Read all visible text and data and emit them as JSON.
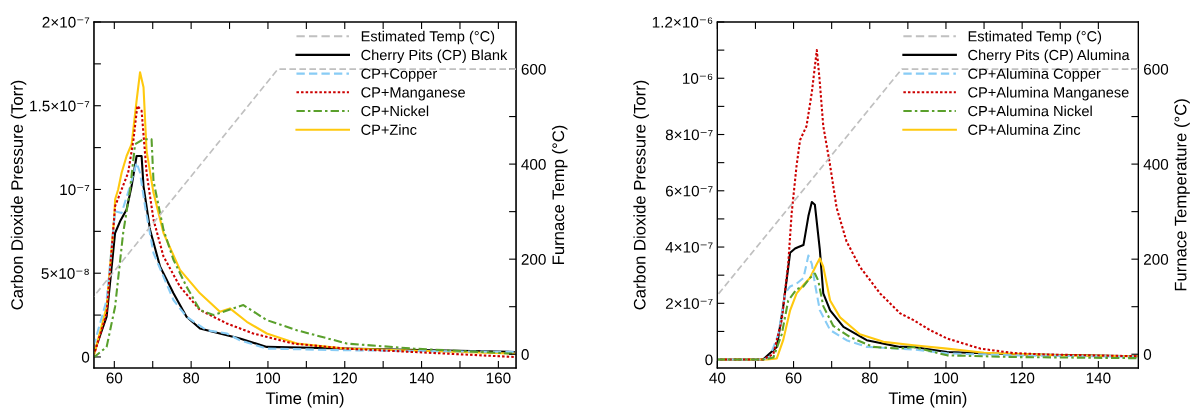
{
  "chart_data": [
    {
      "type": "line",
      "xlabel": "Time (min)",
      "ylabel": "Carbon Dioxide Pressure (Torr)",
      "y2label": "Furnace Temp (°C)",
      "legend": "top right",
      "grid": false,
      "xlim": [
        54.7,
        164.6
      ],
      "xticks": [
        60,
        {
          "value": 70,
          "label": null
        },
        80,
        {
          "value": 90,
          "label": null
        },
        100,
        {
          "value": 110,
          "label": null
        },
        120,
        {
          "value": 130,
          "label": null
        },
        140,
        {
          "value": 150,
          "label": null
        },
        160
      ],
      "ylim": [
        -6.6e-09,
        2e-07
      ],
      "yticks": [
        {
          "value": 0,
          "label": "0"
        },
        {
          "value": 2.5e-08,
          "label": null
        },
        {
          "value": 5e-08,
          "label": "5×10⁻⁸"
        },
        {
          "value": 7.5e-08,
          "label": null
        },
        {
          "value": 1e-07,
          "label": "10⁻⁷"
        },
        {
          "value": 1.25e-07,
          "label": null
        },
        {
          "value": 1.5e-07,
          "label": "1.5×10⁻⁷"
        },
        {
          "value": 1.75e-07,
          "label": null
        },
        {
          "value": 2e-07,
          "label": "2×10⁻⁷"
        }
      ],
      "y2lim": [
        -29,
        699
      ],
      "y2ticks": [
        0,
        {
          "value": 100,
          "label": null
        },
        200,
        {
          "value": 300,
          "label": null
        },
        400,
        {
          "value": 500,
          "label": null
        },
        600
      ],
      "series": [
        {
          "name": "Estimated Temp (°C)",
          "color": "#c0c0c0",
          "line_style": "dashed",
          "axis": "y2",
          "x": [
            54.7,
            102.6,
            164.6
          ],
          "values": [
            122,
            600,
            600
          ]
        },
        {
          "name": "Cherry Pits (CP) Blank",
          "color": "#000000",
          "line_style": "solid",
          "x": [
            54.8,
            58,
            60.2,
            61.5,
            63.2,
            64.5,
            65.8,
            67.1,
            67.6,
            69.3,
            71.9,
            75.4,
            78.8,
            82.3,
            89.3,
            92.7,
            99.7,
            120,
            164
          ],
          "values": [
            3e-09,
            2.4e-08,
            7.4e-08,
            8.1e-08,
            8.8e-08,
            1.02e-07,
            1.2e-07,
            1.2e-07,
            1.02e-07,
            7.6e-08,
            5.4e-08,
            3.8e-08,
            2.4e-08,
            1.7e-08,
            1.3e-08,
            1.1e-08,
            6e-09,
            5e-09,
            3e-09
          ]
        },
        {
          "name": "CP+Copper",
          "color": "#88ccf5",
          "line_style": "dashed",
          "x": [
            54.8,
            58,
            60.2,
            61.9,
            64.1,
            65.8,
            66.7,
            68,
            70.2,
            72.8,
            75.4,
            78.8,
            84,
            89.3,
            92.7,
            99.7,
            120,
            164
          ],
          "values": [
            8e-09,
            3.4e-08,
            8.7e-08,
            8.6e-08,
            1.02e-07,
            1.16e-07,
            1.1e-07,
            9e-08,
            6.2e-08,
            4.8e-08,
            3.4e-08,
            2.4e-08,
            1.6e-08,
            1.4e-08,
            1e-08,
            5e-09,
            4e-09,
            3e-09
          ]
        },
        {
          "name": "CP+Manganese",
          "color": "#cc0000",
          "line_style": "dotted",
          "x": [
            54.8,
            58,
            60.2,
            61.9,
            63.6,
            65,
            66,
            67.1,
            68.4,
            70.2,
            72.8,
            77.1,
            82.3,
            89.3,
            96.2,
            106.6,
            120,
            164
          ],
          "values": [
            2e-09,
            2.6e-08,
            9e-08,
            1e-07,
            1.1e-07,
            1.3e-07,
            1.5e-07,
            1.47e-07,
            1.1e-07,
            8.2e-08,
            6e-08,
            4.2e-08,
            2.8e-08,
            2e-08,
            1.4e-08,
            8e-09,
            5e-09,
            0
          ]
        },
        {
          "name": "CP+Nickel",
          "color": "#5aa02c",
          "line_style": "dashdot",
          "x": [
            54.8,
            58,
            60.2,
            62.3,
            64.1,
            65.4,
            67.6,
            69.7,
            70.2,
            72.8,
            75.4,
            78.8,
            82.3,
            85.8,
            91,
            93.6,
            99.7,
            107.5,
            120.5,
            137.9,
            163.6
          ],
          "values": [
            0,
            6e-09,
            3e-08,
            7.4e-08,
            1e-07,
            1.27e-07,
            1.3e-07,
            1.3e-07,
            1.05e-07,
            7.6e-08,
            5.8e-08,
            4.2e-08,
            2.8e-08,
            2.5e-08,
            2.9e-08,
            3.1e-08,
            2.2e-08,
            1.6e-08,
            8e-09,
            5e-09,
            2e-09
          ]
        },
        {
          "name": "CP+Zinc",
          "color": "#ffc90e",
          "line_style": "solid",
          "x": [
            54.8,
            58,
            60,
            60.2,
            61,
            61.9,
            63.2,
            64.5,
            65.8,
            66.7,
            67.6,
            68.4,
            70.2,
            72.8,
            77.1,
            82.3,
            87.5,
            90.1,
            94.5,
            99.7,
            107.5,
            120,
            164
          ],
          "values": [
            2e-09,
            3e-08,
            8.4e-08,
            9.4e-08,
            1e-07,
            1.1e-07,
            1.2e-07,
            1.27e-07,
            1.53e-07,
            1.7e-07,
            1.61e-07,
            1.23e-07,
            9.8e-08,
            7.4e-08,
            5.2e-08,
            3.8e-08,
            2.7e-08,
            2.9e-08,
            2.1e-08,
            1.4e-08,
            8e-09,
            5e-09,
            2e-09
          ]
        }
      ]
    },
    {
      "type": "line",
      "xlabel": "Time (min)",
      "ylabel": "Carbon Dioxide Pressure (Torr)",
      "y2label": "Furnace Temperature (°C)",
      "legend": "top right",
      "grid": false,
      "xlim": [
        40,
        150.5
      ],
      "xticks": [
        40,
        {
          "value": 50,
          "label": null
        },
        60,
        {
          "value": 70,
          "label": null
        },
        80,
        {
          "value": 90,
          "label": null
        },
        100,
        {
          "value": 110,
          "label": null
        },
        120,
        {
          "value": 130,
          "label": null
        },
        140
      ],
      "ylim": [
        -3e-08,
        1.2e-06
      ],
      "yticks": [
        {
          "value": 0,
          "label": "0"
        },
        {
          "value": 1e-07,
          "label": null
        },
        {
          "value": 2e-07,
          "label": "2×10⁻⁷"
        },
        {
          "value": 3e-07,
          "label": null
        },
        {
          "value": 4e-07,
          "label": "4×10⁻⁷"
        },
        {
          "value": 5e-07,
          "label": null
        },
        {
          "value": 6e-07,
          "label": "6×10⁻⁷"
        },
        {
          "value": 7e-07,
          "label": null
        },
        {
          "value": 8e-07,
          "label": "8×10⁻⁷"
        },
        {
          "value": 9e-07,
          "label": null
        },
        {
          "value": 1e-06,
          "label": "10⁻⁶"
        },
        {
          "value": 1.1e-06,
          "label": null
        },
        {
          "value": 1.2e-06,
          "label": "1.2×10⁻⁶"
        }
      ],
      "y2lim": [
        -29,
        699
      ],
      "y2ticks": [
        0,
        {
          "value": 100,
          "label": null
        },
        200,
        {
          "value": 300,
          "label": null
        },
        400,
        {
          "value": 500,
          "label": null
        },
        600
      ],
      "series": [
        {
          "name": "Estimated Temp (°C)",
          "color": "#c0c0c0",
          "line_style": "dashed",
          "axis": "y2",
          "x": [
            40,
            88.4,
            150.5
          ],
          "values": [
            124,
            600,
            600
          ]
        },
        {
          "name": "Cherry Pits (CP) Alumina",
          "color": "#000000",
          "line_style": "solid",
          "x": [
            40,
            52,
            55.6,
            57.3,
            59.1,
            60.4,
            61.3,
            62.6,
            63.9,
            64.8,
            65.6,
            66.9,
            67.8,
            69.6,
            73.1,
            79.2,
            87.9,
            91.5,
            100.3,
            117.8,
            150
          ],
          "values": [
            0,
            0,
            4.5e-08,
            1.9e-07,
            3.8e-07,
            3.95e-07,
            4e-07,
            4.07e-07,
            5.1e-07,
            5.6e-07,
            5.5e-07,
            3.9e-07,
            2.35e-07,
            1.75e-07,
            1.16e-07,
            6.9e-08,
            4.5e-08,
            4.5e-08,
            2.7e-08,
            1.9e-08,
            1.2e-08
          ]
        },
        {
          "name": "CP+Alumina Copper",
          "color": "#88ccf5",
          "line_style": "dashed",
          "x": [
            40,
            52,
            53.8,
            56,
            57.8,
            59.1,
            60.8,
            62.6,
            63.9,
            64.8,
            65.6,
            66.9,
            69.6,
            73.9,
            79.2,
            91.5,
            100.3,
            117.8,
            150
          ],
          "values": [
            0,
            0,
            1e-08,
            9e-08,
            2.35e-07,
            2.6e-07,
            2.7e-07,
            2.9e-07,
            3.7e-07,
            3.4e-07,
            2.7e-07,
            1.75e-07,
            1.05e-07,
            6.9e-08,
            4.5e-08,
            3.6e-08,
            2.2e-08,
            1.5e-08,
            1e-08
          ]
        },
        {
          "name": "CP+Alumina Manganese",
          "color": "#cc0000",
          "line_style": "dotted",
          "x": [
            40,
            52,
            54.7,
            56.9,
            58.6,
            59.5,
            60.8,
            61.7,
            63.4,
            64.8,
            66.1,
            66.8,
            67.8,
            69.6,
            71.3,
            73.9,
            77.4,
            82.7,
            88,
            91.5,
            95.9,
            100.3,
            109,
            117.8,
            126.5,
            150
          ],
          "values": [
            0,
            0,
            2e-08,
            1.4e-07,
            3.4e-07,
            5.2e-07,
            6.9e-07,
            7.8e-07,
            8.3e-07,
            9.5e-07,
            1.1e-06,
            1e-06,
            8.3e-07,
            6.9e-07,
            5.4e-07,
            4.2e-07,
            3.3e-07,
            2.35e-07,
            1.64e-07,
            1.4e-07,
            1.04e-07,
            7.5e-08,
            3.9e-08,
            2.3e-08,
            1.8e-08,
            1.2e-08
          ]
        },
        {
          "name": "CP+Alumina Nickel",
          "color": "#5aa02c",
          "line_style": "dashdot",
          "x": [
            40,
            52,
            54.7,
            56.9,
            58.6,
            60.8,
            62.6,
            64.3,
            65.6,
            66.5,
            67.8,
            70.4,
            74.8,
            80.9,
            87.9,
            91.5,
            100.3,
            117.8,
            150
          ],
          "values": [
            0,
            0,
            7e-09,
            9e-08,
            2.1e-07,
            2.5e-07,
            2.6e-07,
            2.9e-07,
            3.06e-07,
            2.8e-07,
            1.9e-07,
            1.2e-07,
            8e-08,
            4.5e-08,
            3.9e-08,
            4.5e-08,
            1.5e-08,
            9e-09,
            5e-09
          ]
        },
        {
          "name": "CP+Alumina Zinc",
          "color": "#ffc90e",
          "line_style": "solid",
          "x": [
            40,
            53,
            55.6,
            57.3,
            59.1,
            60.8,
            62.6,
            64.3,
            66.1,
            66.9,
            67.8,
            69.6,
            72.2,
            77.4,
            83.6,
            91.5,
            100.3,
            110,
            130,
            150
          ],
          "values": [
            0,
            0,
            4e-09,
            7e-08,
            1.75e-07,
            2.35e-07,
            2.65e-07,
            2.9e-07,
            3.4e-07,
            3.6e-07,
            3.3e-07,
            2.1e-07,
            1.5e-07,
            9e-08,
            6.3e-08,
            5.1e-08,
            3.9e-08,
            2.4e-08,
            1.5e-08,
            1.2e-08
          ]
        }
      ]
    }
  ]
}
